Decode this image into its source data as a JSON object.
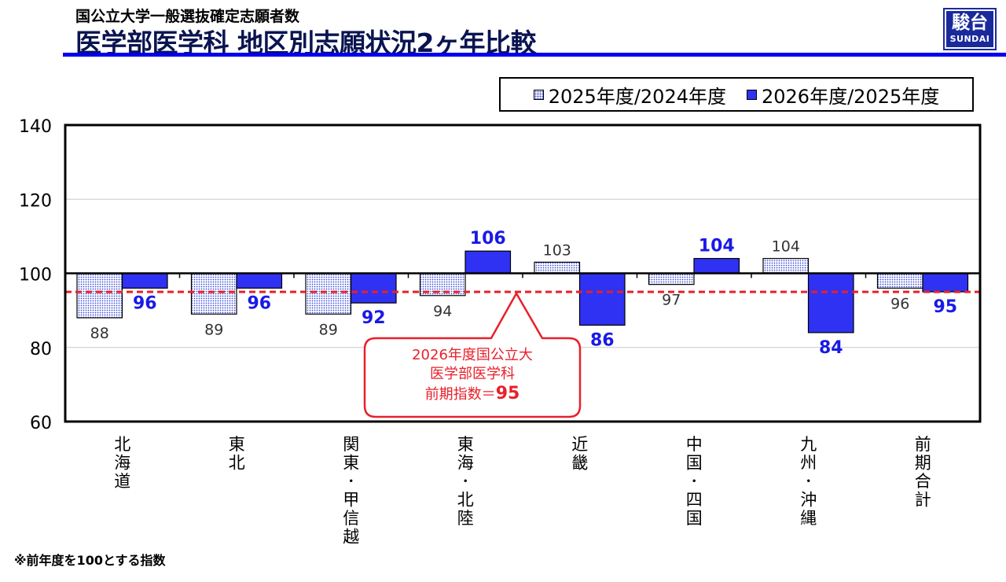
{
  "header": {
    "subtitle": "国公立大学一般選抜確定志願者数",
    "title": "医学部医学科 地区別志願状況2ヶ年比較"
  },
  "logo": {
    "main": "駿台",
    "sub": "SUNDAI"
  },
  "legend": {
    "items": [
      {
        "label": "2025年度/2024年度",
        "style": "dotted"
      },
      {
        "label": "2026年度/2025年度",
        "style": "solid"
      }
    ]
  },
  "footnote": "※前年度を100とする指数",
  "callout": {
    "line1": "2026年度国公立大",
    "line2": "医学部医学科",
    "line3_prefix": "前期指数＝",
    "line3_value": "95"
  },
  "colors": {
    "series_solid": "#2f32f2",
    "series_dotted_dot": "#3b4bd6",
    "reference_line": "#e8202a",
    "title": "#0a1450",
    "rule": "#0000ee",
    "solid_value_label": "#1a1ae6"
  },
  "chart_data": {
    "type": "bar",
    "baseline": 100,
    "ylim": [
      60,
      140
    ],
    "yticks": [
      60,
      80,
      100,
      120,
      140
    ],
    "grid": true,
    "legend_position": "top-right",
    "categories": [
      "北海道",
      "東北",
      "関東・甲信越",
      "東海・北陸",
      "近畿",
      "中国・四国",
      "九州・沖縄",
      "前期合計"
    ],
    "series": [
      {
        "name": "2025年度/2024年度",
        "style": "dotted",
        "values": [
          88,
          89,
          89,
          94,
          103,
          97,
          104,
          96
        ]
      },
      {
        "name": "2026年度/2025年度",
        "style": "solid",
        "values": [
          96,
          96,
          92,
          106,
          86,
          104,
          84,
          95
        ]
      }
    ],
    "reference_line": {
      "value": 95
    }
  }
}
